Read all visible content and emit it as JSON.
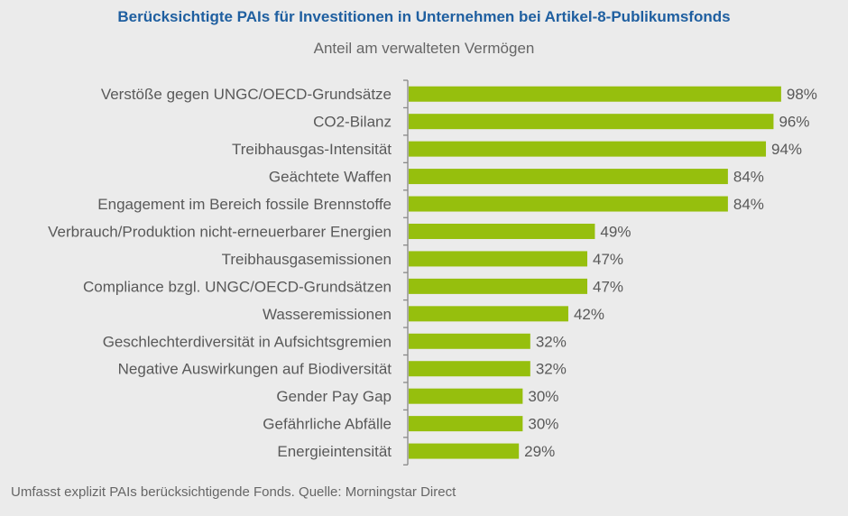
{
  "chart_data": {
    "type": "bar",
    "orientation": "horizontal",
    "title": "Berücksichtigte PAIs für Investitionen in Unternehmen bei Artikel-8-Publikumsfonds",
    "subtitle": "Anteil am verwalteten Vermögen",
    "categories": [
      "Verstöße gegen UNGC/OECD-Grundsätze",
      "CO2-Bilanz",
      "Treibhausgas-Intensität",
      "Geächtete Waffen",
      "Engagement im Bereich fossile Brennstoffe",
      "Verbrauch/Produktion nicht-erneuerbarer Energien",
      "Treibhausgasemissionen",
      "Compliance bzgl. UNGC/OECD-Grundsätzen",
      "Wasseremissionen",
      "Geschlechterdiversität in Aufsichtsgremien",
      "Negative Auswirkungen auf Biodiversität",
      "Gender Pay Gap",
      "Gefährliche Abfälle",
      "Energieintensität"
    ],
    "values": [
      98,
      96,
      94,
      84,
      84,
      49,
      47,
      47,
      42,
      32,
      32,
      30,
      30,
      29
    ],
    "data_labels": [
      "98%",
      "96%",
      "94%",
      "84%",
      "84%",
      "49%",
      "47%",
      "47%",
      "42%",
      "32%",
      "32%",
      "30%",
      "30%",
      "29%"
    ],
    "xlim": [
      0,
      100
    ],
    "grid": false,
    "legend": "none",
    "bar_color": "#96bf0d",
    "title_color": "#1f5fa0"
  },
  "footnote": "Umfasst explizit PAIs berücksichtigende Fonds. Quelle: Morningstar Direct"
}
